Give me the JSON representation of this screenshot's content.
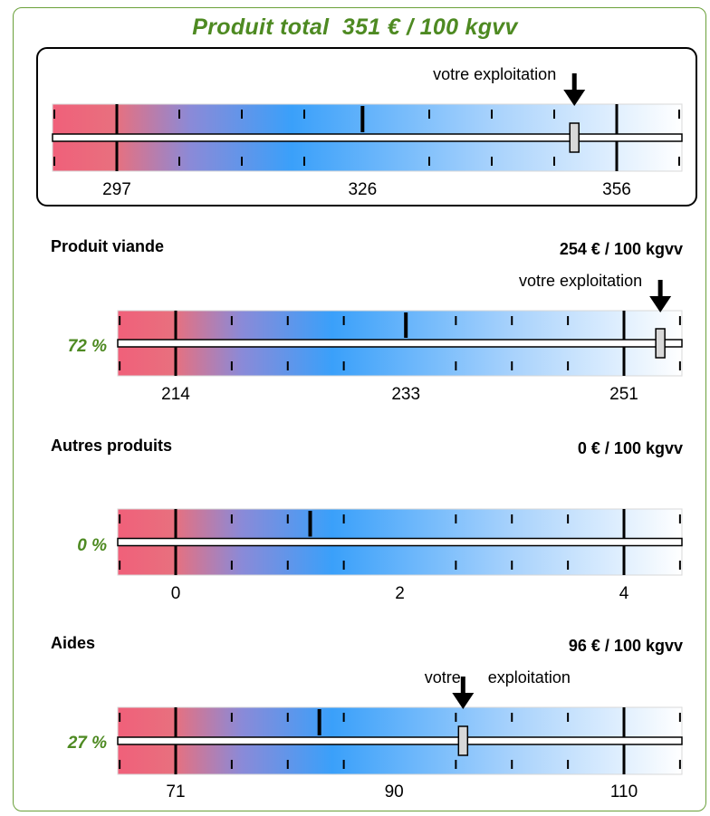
{
  "title": "Produit total  351 € / 100 kgvv",
  "marker_label": "votre exploitation",
  "colors": {
    "frame_border": "#6aa03a",
    "title_green": "#4e8a22",
    "gradient_low": "#f0607a",
    "gradient_mid": "#3aa0fa",
    "gradient_high": "#ffffff"
  },
  "sections": [
    {
      "label": "",
      "value_text": "",
      "percent": ""
    },
    {
      "label": "Produit viande",
      "value_text": "254 € / 100 kgvv",
      "percent": "72 %"
    },
    {
      "label": "Autres produits",
      "value_text": "0 € / 100 kgvv",
      "percent": "0 %"
    },
    {
      "label": "Aides",
      "value_text": "96 € / 100 kgvv",
      "percent": "27 %"
    }
  ],
  "chart_data": [
    {
      "type": "gauge",
      "ticks": [
        297,
        326,
        356
      ],
      "ticks_text": [
        "297",
        "326",
        "356"
      ],
      "mean": 326,
      "value": 351,
      "marker_label": "votre exploitation"
    },
    {
      "type": "gauge",
      "ticks": [
        214,
        233,
        251
      ],
      "ticks_text": [
        "214",
        "233",
        "251"
      ],
      "mean": 233,
      "value": 254,
      "marker_label": "votre exploitation"
    },
    {
      "type": "gauge",
      "ticks": [
        0,
        2,
        4
      ],
      "ticks_text": [
        "0",
        "2",
        "4"
      ],
      "mean": 1.2,
      "value": null,
      "marker_label": ""
    },
    {
      "type": "gauge",
      "ticks": [
        71,
        90,
        110
      ],
      "ticks_text": [
        "71",
        "90",
        "110"
      ],
      "mean": 83.5,
      "value": 96,
      "marker_label": "votre      exploitation"
    }
  ]
}
